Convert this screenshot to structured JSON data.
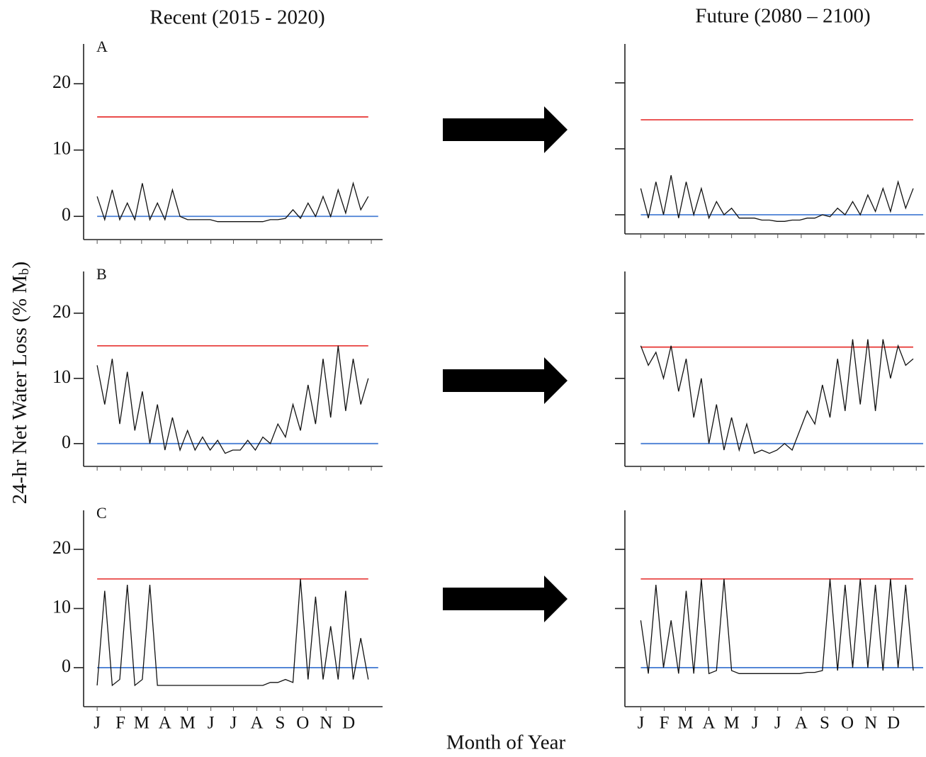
{
  "figure": {
    "left_title": "Recent  (2015 - 2020)",
    "right_title": "Future (2080 – 2100)",
    "y_label": {
      "prefix": "24-hr  Net  Water  Loss  (% M",
      "subscript": "b",
      "suffix": ")"
    },
    "x_label": "Month of Year"
  },
  "chart_data": [
    {
      "type": "line",
      "label": "A",
      "x": [
        1,
        11,
        21,
        31,
        41,
        51,
        61,
        71,
        81,
        91,
        101,
        111,
        121,
        131,
        141,
        151,
        161,
        171,
        181,
        191,
        201,
        211,
        221,
        231,
        241,
        251,
        261,
        271,
        281,
        291,
        301,
        311,
        321,
        331,
        341,
        351,
        361
      ],
      "series": [
        {
          "color": "#111111",
          "values": [
            3,
            -0.5,
            4,
            -0.5,
            2,
            -0.5,
            5,
            -0.5,
            2,
            -0.5,
            4,
            0,
            -0.5,
            -0.5,
            -0.5,
            -0.5,
            -0.8,
            -0.8,
            -0.8,
            -0.8,
            -0.8,
            -0.8,
            -0.8,
            -0.5,
            -0.5,
            -0.3,
            1,
            -0.3,
            2,
            0,
            3,
            0,
            4,
            0.5,
            5,
            1,
            3
          ]
        }
      ],
      "reference_lines": [
        {
          "value": 15,
          "color": "#e8413f"
        },
        {
          "value": 0,
          "color": "#4a7fd4"
        }
      ],
      "xlim": [
        -17,
        380
      ],
      "ylim": [
        -3.5,
        26
      ],
      "xticks": [
        1,
        32,
        60,
        91,
        121,
        152,
        182,
        213,
        244,
        274,
        305,
        335,
        365
      ],
      "yticks": [
        0,
        10,
        20
      ],
      "show_y_tick_labels": true,
      "show_x_tick_labels": false
    },
    {
      "type": "line",
      "x": [
        1,
        11,
        21,
        31,
        41,
        51,
        61,
        71,
        81,
        91,
        101,
        111,
        121,
        131,
        141,
        151,
        161,
        171,
        181,
        191,
        201,
        211,
        221,
        231,
        241,
        251,
        261,
        271,
        281,
        291,
        301,
        311,
        321,
        331,
        341,
        351,
        361
      ],
      "series": [
        {
          "color": "#111111",
          "values": [
            4,
            -0.5,
            5,
            0,
            6,
            -0.5,
            5,
            0,
            4,
            -0.5,
            2,
            0,
            1,
            -0.5,
            -0.5,
            -0.5,
            -0.8,
            -0.8,
            -1,
            -1,
            -0.8,
            -0.8,
            -0.5,
            -0.5,
            0,
            -0.3,
            1,
            0,
            2,
            0,
            3,
            0.5,
            4,
            0.5,
            5,
            1,
            4
          ]
        }
      ],
      "reference_lines": [
        {
          "value": 14.4,
          "color": "#e8413f"
        },
        {
          "value": 0,
          "color": "#4a7fd4"
        }
      ],
      "xlim": [
        -20,
        376
      ],
      "ylim": [
        -2.9,
        25.9
      ],
      "xticks": [
        1,
        32,
        60,
        91,
        121,
        152,
        182,
        213,
        244,
        274,
        305,
        335,
        365
      ],
      "yticks": [
        0,
        10,
        20
      ],
      "show_y_tick_labels": false,
      "show_x_tick_labels": false
    },
    {
      "type": "line",
      "label": "B",
      "x": [
        1,
        11,
        21,
        31,
        41,
        51,
        61,
        71,
        81,
        91,
        101,
        111,
        121,
        131,
        141,
        151,
        161,
        171,
        181,
        191,
        201,
        211,
        221,
        231,
        241,
        251,
        261,
        271,
        281,
        291,
        301,
        311,
        321,
        331,
        341,
        351,
        361
      ],
      "series": [
        {
          "color": "#111111",
          "values": [
            12,
            6,
            13,
            3,
            11,
            2,
            8,
            0,
            6,
            -1,
            4,
            -1,
            2,
            -1,
            1,
            -1,
            0.5,
            -1.5,
            -1,
            -1,
            0.5,
            -1,
            1,
            0,
            3,
            1,
            6,
            2,
            9,
            3,
            13,
            4,
            15,
            5,
            13,
            6,
            10
          ]
        }
      ],
      "reference_lines": [
        {
          "value": 15,
          "color": "#e8413f"
        },
        {
          "value": 0,
          "color": "#4a7fd4"
        }
      ],
      "xlim": [
        -17,
        380
      ],
      "ylim": [
        -3.5,
        26.4
      ],
      "xticks": [
        1,
        32,
        60,
        91,
        121,
        152,
        182,
        213,
        244,
        274,
        305,
        335,
        365
      ],
      "yticks": [
        0,
        10,
        20
      ],
      "show_y_tick_labels": true,
      "show_x_tick_labels": false
    },
    {
      "type": "line",
      "x": [
        1,
        11,
        21,
        31,
        41,
        51,
        61,
        71,
        81,
        91,
        101,
        111,
        121,
        131,
        141,
        151,
        161,
        171,
        181,
        191,
        201,
        211,
        221,
        231,
        241,
        251,
        261,
        271,
        281,
        291,
        301,
        311,
        321,
        331,
        341,
        351,
        361
      ],
      "series": [
        {
          "color": "#111111",
          "values": [
            15,
            12,
            14,
            10,
            15,
            8,
            13,
            4,
            10,
            0,
            6,
            -1,
            4,
            -1,
            3,
            -1.5,
            -1,
            -1.5,
            -1,
            0,
            -1,
            2,
            5,
            3,
            9,
            4,
            13,
            5,
            16,
            6,
            16,
            5,
            16,
            10,
            15,
            12,
            13
          ]
        }
      ],
      "reference_lines": [
        {
          "value": 14.8,
          "color": "#e8413f"
        },
        {
          "value": 0,
          "color": "#4a7fd4"
        }
      ],
      "xlim": [
        -20,
        376
      ],
      "ylim": [
        -3.5,
        26.4
      ],
      "xticks": [
        1,
        32,
        60,
        91,
        121,
        152,
        182,
        213,
        244,
        274,
        305,
        335,
        365
      ],
      "yticks": [
        0,
        10,
        20
      ],
      "show_y_tick_labels": false,
      "show_x_tick_labels": false
    },
    {
      "type": "line",
      "label": "C",
      "x": [
        1,
        11,
        21,
        31,
        41,
        51,
        61,
        71,
        81,
        91,
        101,
        111,
        121,
        131,
        141,
        151,
        161,
        171,
        181,
        191,
        201,
        211,
        221,
        231,
        241,
        251,
        261,
        271,
        281,
        291,
        301,
        311,
        321,
        331,
        341,
        351,
        361
      ],
      "series": [
        {
          "color": "#111111",
          "values": [
            -3,
            13,
            -3,
            -2,
            14,
            -3,
            -2,
            14,
            -3,
            -3,
            -3,
            -3,
            -3,
            -3,
            -3,
            -3,
            -3,
            -3,
            -3,
            -3,
            -3,
            -3,
            -3,
            -2.5,
            -2.5,
            -2,
            -2.5,
            15,
            -2,
            12,
            -2,
            7,
            -2,
            13,
            -2,
            5,
            -2
          ]
        }
      ],
      "reference_lines": [
        {
          "value": 15,
          "color": "#e8413f"
        },
        {
          "value": 0,
          "color": "#4a7fd4"
        }
      ],
      "xlim": [
        -17,
        380
      ],
      "ylim": [
        -6.6,
        26.6
      ],
      "xticks": [
        {
          "value": 1,
          "label": "J"
        },
        {
          "value": 32,
          "label": "F"
        },
        {
          "value": 60,
          "label": "M"
        },
        {
          "value": 91,
          "label": "A"
        },
        {
          "value": 121,
          "label": "M"
        },
        {
          "value": 152,
          "label": "J"
        },
        {
          "value": 182,
          "label": "J"
        },
        {
          "value": 213,
          "label": "A"
        },
        {
          "value": 244,
          "label": "S"
        },
        {
          "value": 274,
          "label": "O"
        },
        {
          "value": 305,
          "label": "N"
        },
        {
          "value": 335,
          "label": "D"
        }
      ],
      "yticks": [
        0,
        10,
        20
      ],
      "show_y_tick_labels": true,
      "show_x_tick_labels": true
    },
    {
      "type": "line",
      "x": [
        1,
        11,
        21,
        31,
        41,
        51,
        61,
        71,
        81,
        91,
        101,
        111,
        121,
        131,
        141,
        151,
        161,
        171,
        181,
        191,
        201,
        211,
        221,
        231,
        241,
        251,
        261,
        271,
        281,
        291,
        301,
        311,
        321,
        331,
        341,
        351,
        361
      ],
      "series": [
        {
          "color": "#111111",
          "values": [
            8,
            -1,
            14,
            0,
            8,
            -1,
            13,
            -1,
            15,
            -1,
            -0.5,
            15,
            -0.5,
            -1,
            -1,
            -1,
            -1,
            -1,
            -1,
            -1,
            -1,
            -1,
            -0.8,
            -0.8,
            -0.5,
            15,
            -0.5,
            14,
            0,
            15,
            0,
            14,
            -0.5,
            15,
            0,
            14,
            -0.5
          ]
        }
      ],
      "reference_lines": [
        {
          "value": 15,
          "color": "#e8413f"
        },
        {
          "value": 0,
          "color": "#4a7fd4"
        }
      ],
      "xlim": [
        -20,
        376
      ],
      "ylim": [
        -6.6,
        26.6
      ],
      "xticks": [
        {
          "value": 1,
          "label": "J"
        },
        {
          "value": 32,
          "label": "F"
        },
        {
          "value": 60,
          "label": "M"
        },
        {
          "value": 91,
          "label": "A"
        },
        {
          "value": 121,
          "label": "M"
        },
        {
          "value": 152,
          "label": "J"
        },
        {
          "value": 182,
          "label": "J"
        },
        {
          "value": 213,
          "label": "A"
        },
        {
          "value": 244,
          "label": "S"
        },
        {
          "value": 274,
          "label": "O"
        },
        {
          "value": 305,
          "label": "N"
        },
        {
          "value": 335,
          "label": "D"
        }
      ],
      "yticks": [
        0,
        10,
        20
      ],
      "show_y_tick_labels": false,
      "show_x_tick_labels": true
    }
  ]
}
